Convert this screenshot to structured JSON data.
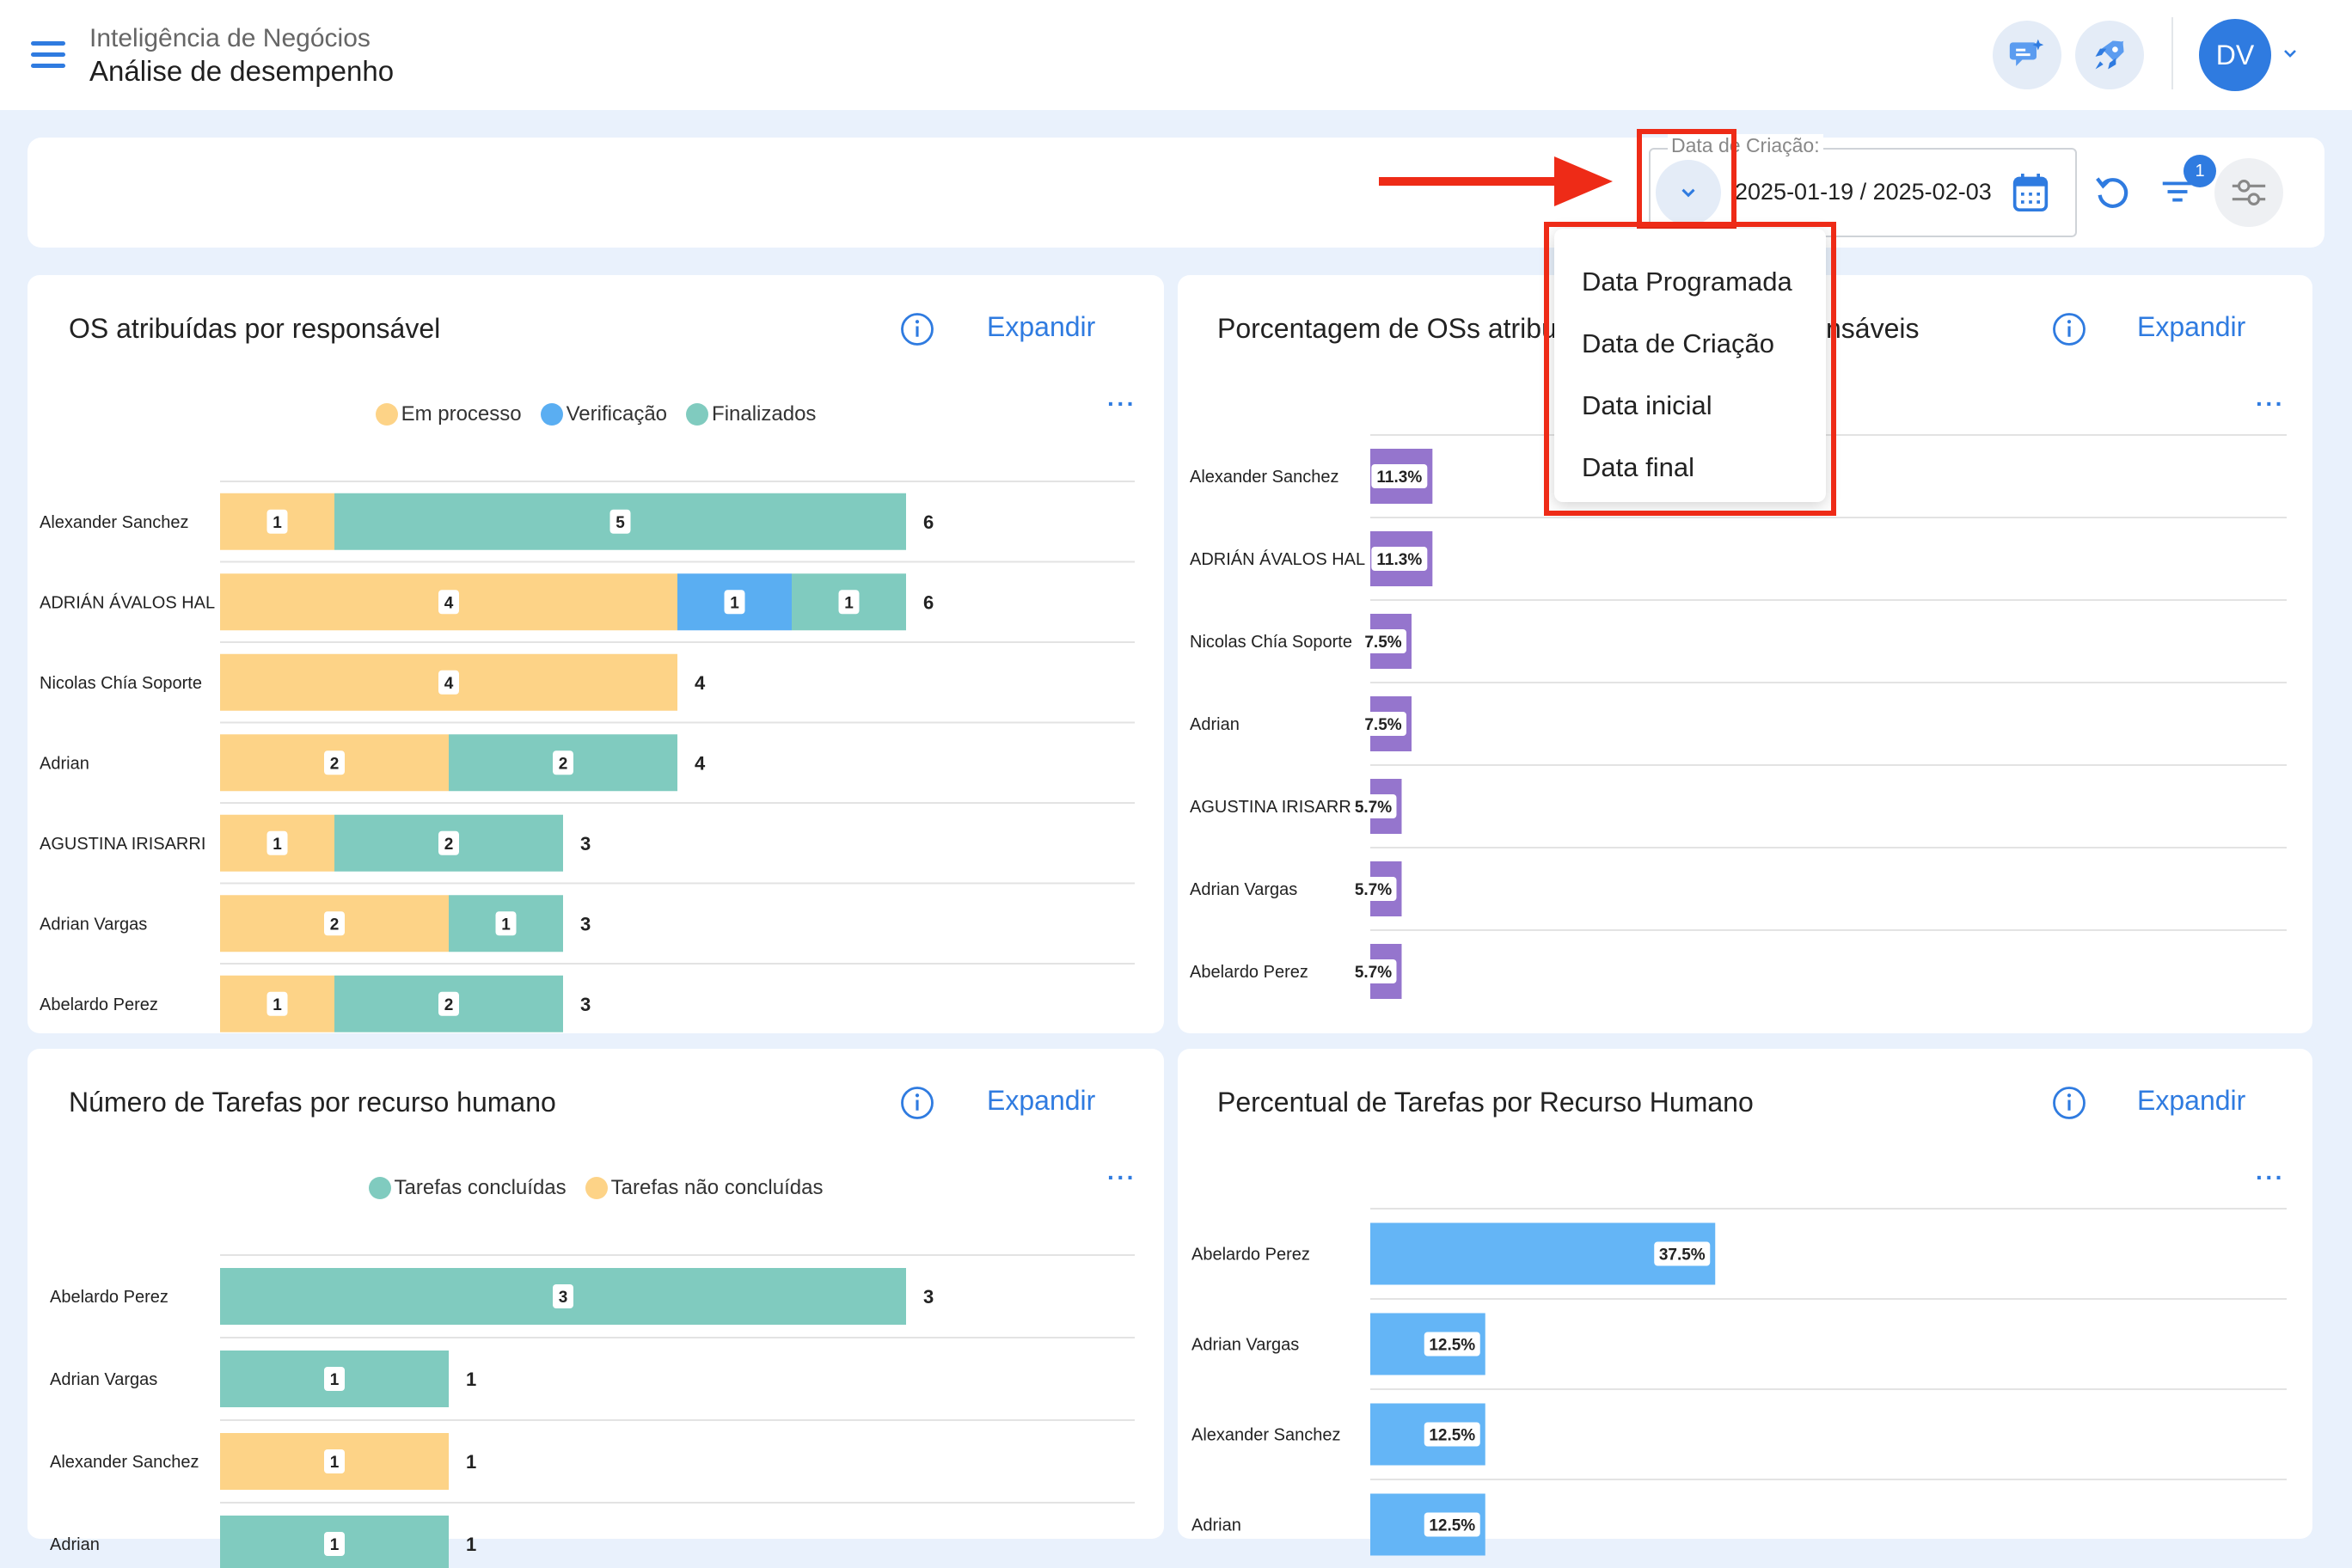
{
  "header": {
    "breadcrumb": "Inteligência de Negócios",
    "title": "Análise de desempenho",
    "avatar_initials": "DV"
  },
  "filter": {
    "date_label": "Data de Criação:",
    "date_range": "2025-01-19 / 2025-02-03",
    "filter_count": "1",
    "dropdown_options": [
      "Data Programada",
      "Data de Criação",
      "Data inicial",
      "Data final"
    ]
  },
  "colors": {
    "accent": "#2f7be0",
    "em_processo": "#fdd387",
    "verificacao": "#5aaef2",
    "finalizados": "#80cbbf",
    "percent_bar": "#9575cd",
    "task_percent_bar": "#64b5f6",
    "annotation_red": "#ee2b17"
  },
  "cards": {
    "c1": {
      "title": "OS atribuídas por responsável",
      "expand": "Expandir",
      "more": "···",
      "legend": [
        "Em processo",
        "Verificação",
        "Finalizados"
      ]
    },
    "c2": {
      "title_left": "Porcentagem de OSs atribu",
      "title_right": "nsáveis",
      "expand": "Expandir",
      "more": "···"
    },
    "c3": {
      "title": "Número de Tarefas por recurso humano",
      "expand": "Expandir",
      "more": "···",
      "legend": [
        "Tarefas concluídas",
        "Tarefas não concluídas"
      ]
    },
    "c4": {
      "title": "Percentual de Tarefas por Recurso Humano",
      "expand": "Expandir",
      "more": "···"
    }
  },
  "chart_data": [
    {
      "id": "os_por_responsavel",
      "type": "bar",
      "orientation": "horizontal",
      "stacked": true,
      "categories": [
        "Alexander Sanchez",
        "ADRIÁN ÁVALOS HAL",
        "Nicolas Chía Soporte",
        "Adrian",
        "AGUSTINA IRISARRI",
        "Adrian Vargas",
        "Abelardo Perez"
      ],
      "series": [
        {
          "name": "Em processo",
          "values": [
            1,
            4,
            4,
            2,
            1,
            2,
            1
          ]
        },
        {
          "name": "Verificação",
          "values": [
            0,
            1,
            0,
            0,
            0,
            0,
            0
          ]
        },
        {
          "name": "Finalizados",
          "values": [
            5,
            1,
            0,
            2,
            2,
            1,
            2
          ]
        }
      ],
      "totals": [
        "6",
        "6",
        "4",
        "4",
        "3",
        "3",
        "3"
      ],
      "xlim": [
        0,
        8
      ]
    },
    {
      "id": "porcentagem_os",
      "type": "bar",
      "orientation": "horizontal",
      "categories": [
        "Alexander Sanchez",
        "ADRIÁN ÁVALOS HAL",
        "Nicolas Chía Soporte",
        "Adrian",
        "AGUSTINA IRISARRI",
        "Adrian Vargas",
        "Abelardo Perez"
      ],
      "values": [
        11.3,
        11.3,
        7.5,
        7.5,
        5.7,
        5.7,
        5.7
      ],
      "labels": [
        "11.3%",
        "11.3%",
        "7.5%",
        "7.5%",
        "5.7%",
        "5.7%",
        "5.7%"
      ]
    },
    {
      "id": "tarefas_por_recurso",
      "type": "bar",
      "orientation": "horizontal",
      "stacked": true,
      "categories": [
        "Abelardo Perez",
        "Adrian Vargas",
        "Alexander Sanchez",
        "Adrian"
      ],
      "series": [
        {
          "name": "Tarefas concluídas",
          "values": [
            3,
            1,
            0,
            1
          ]
        },
        {
          "name": "Tarefas não concluídas",
          "values": [
            0,
            0,
            1,
            0
          ]
        }
      ],
      "totals": [
        "3",
        "1",
        "1",
        "1"
      ],
      "xlim": [
        0,
        4
      ]
    },
    {
      "id": "percentual_tarefas",
      "type": "bar",
      "orientation": "horizontal",
      "categories": [
        "Abelardo Perez",
        "Adrian Vargas",
        "Alexander Sanchez",
        "Adrian"
      ],
      "values": [
        37.5,
        12.5,
        12.5,
        12.5
      ],
      "labels": [
        "37.5%",
        "12.5%",
        "12.5%",
        "12.5%"
      ]
    }
  ]
}
